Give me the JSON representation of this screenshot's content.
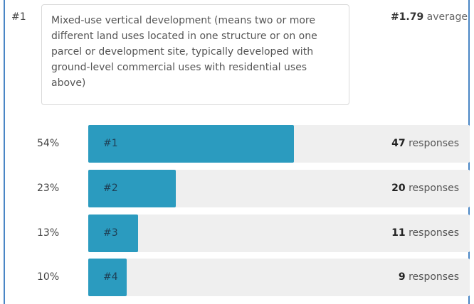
{
  "item": {
    "rank_label": "#1",
    "question": "Mixed-use vertical development (means two or more different land uses located in one structure or on one parcel or development site, typically developed with ground-level commercial uses with residential uses above)",
    "average_value": "#1.79",
    "average_suffix": " average"
  },
  "bars": [
    {
      "percent_label": "54%",
      "rank_label": "#1",
      "fraction": 0.54,
      "count": "47",
      "suffix": " responses"
    },
    {
      "percent_label": "23%",
      "rank_label": "#2",
      "fraction": 0.23,
      "count": "20",
      "suffix": " responses"
    },
    {
      "percent_label": "13%",
      "rank_label": "#3",
      "fraction": 0.13,
      "count": "11",
      "suffix": " responses"
    },
    {
      "percent_label": "10%",
      "rank_label": "#4",
      "fraction": 0.1,
      "count": "9",
      "suffix": " responses"
    }
  ],
  "colors": {
    "bar_fill": "#2b9bbf",
    "bar_track": "#efefef",
    "frame_border": "#4a86c5"
  }
}
